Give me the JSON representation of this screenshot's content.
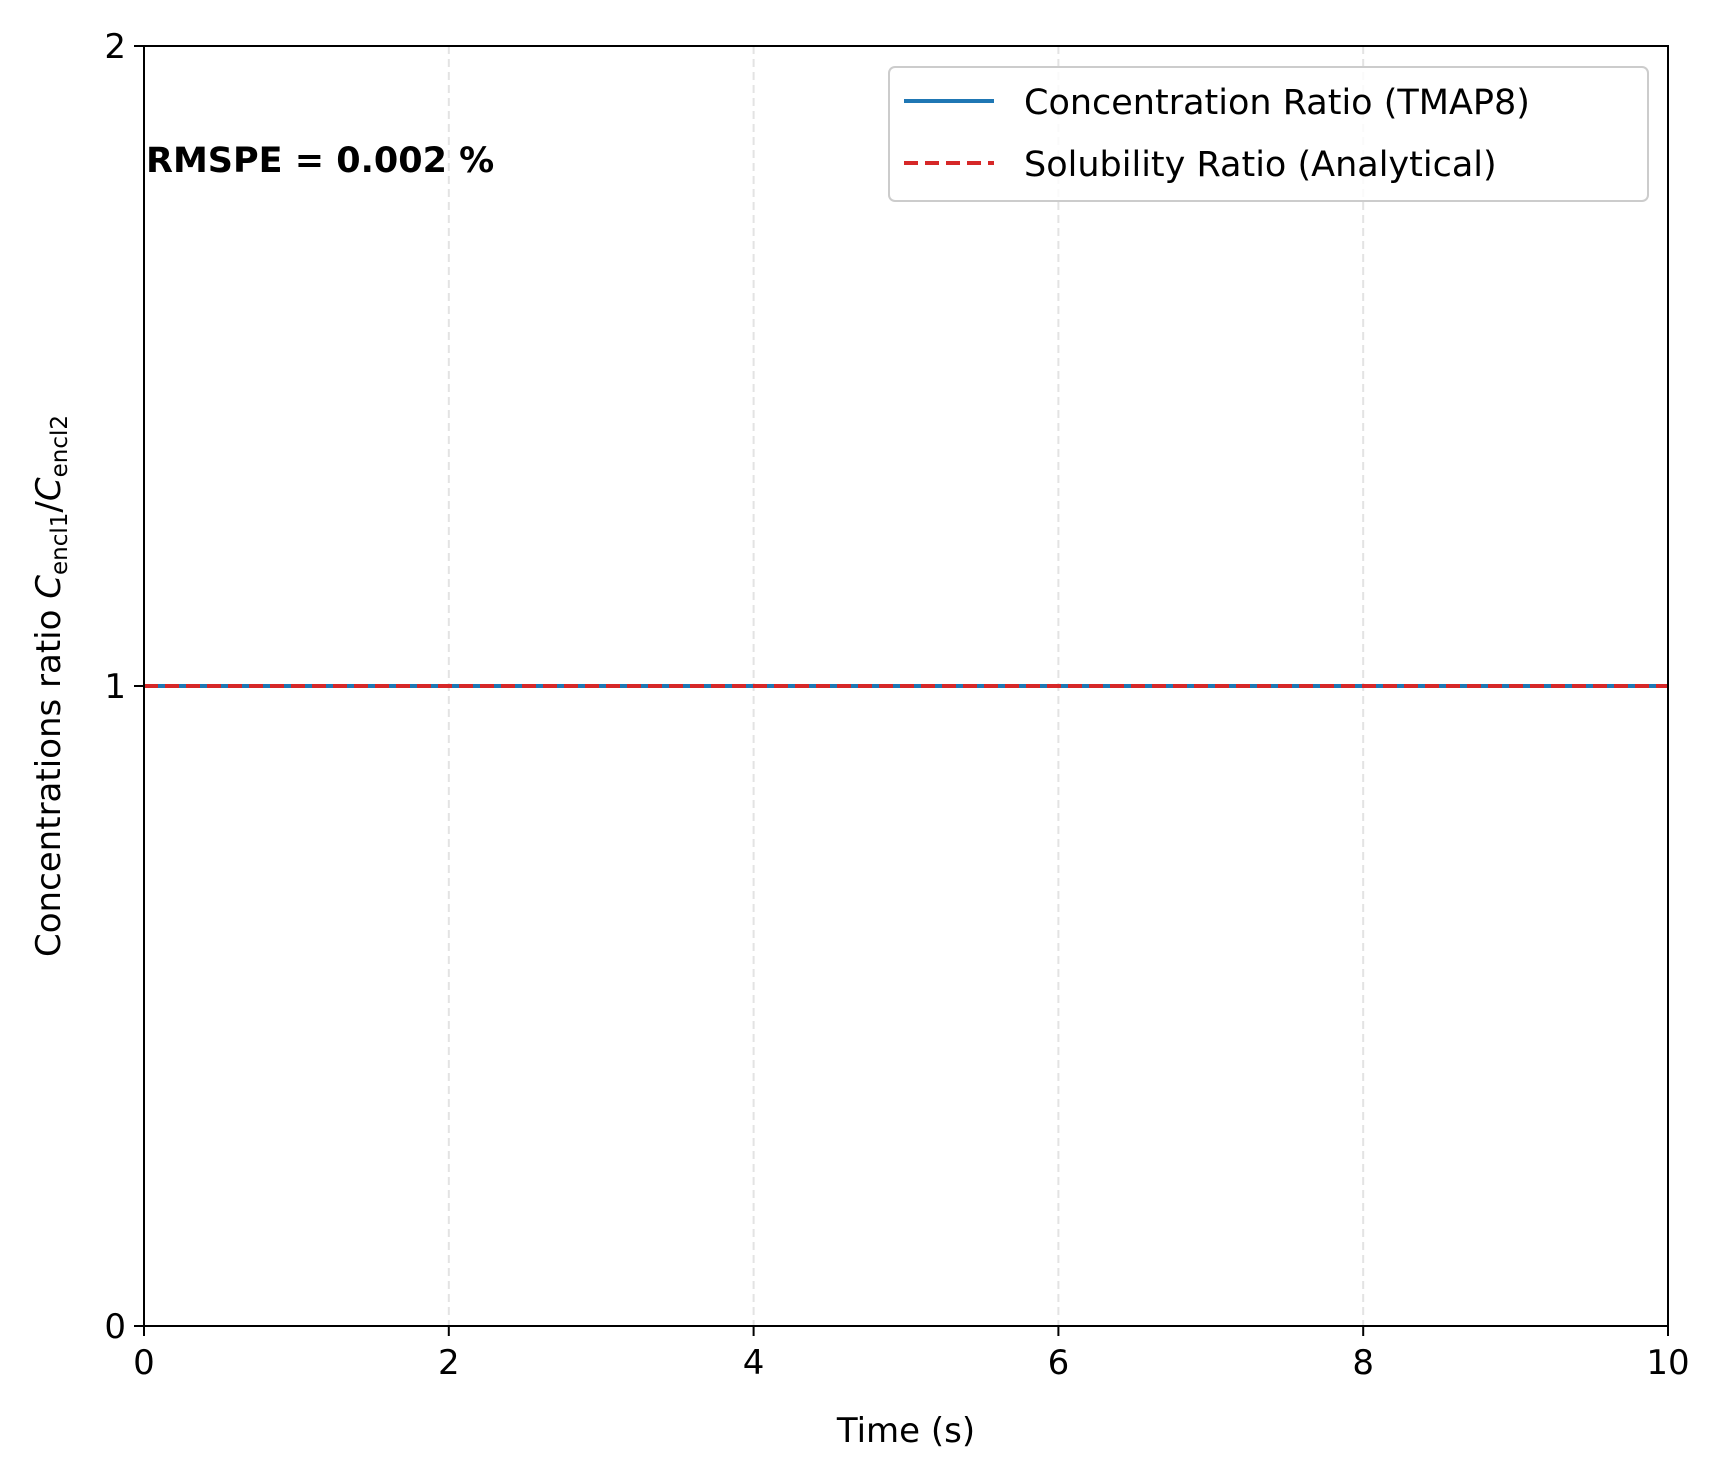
{
  "chart_data": {
    "type": "line",
    "xlabel": "Time (s)",
    "ylabel": {
      "prefix": "Concentrations ratio ",
      "c1": "C",
      "sub1": "encl1",
      "slash": "/",
      "c2": "C",
      "sub2": "encl2"
    },
    "xlim": [
      0,
      10
    ],
    "ylim": [
      0,
      2
    ],
    "xticks": [
      0,
      2,
      4,
      6,
      8,
      10
    ],
    "yticks": [
      0,
      1,
      2
    ],
    "grid": "x-only, dashed",
    "legend_position": "top-right",
    "annotation": "RMSPE = 0.002 %",
    "series": [
      {
        "name": "Concentration Ratio (TMAP8)",
        "style": "solid",
        "color": "#1f77b4",
        "x": [
          0,
          10
        ],
        "y": [
          1.0,
          1.0
        ]
      },
      {
        "name": "Solubility Ratio (Analytical)",
        "style": "dashed",
        "color": "#d62728",
        "x": [
          0,
          10
        ],
        "y": [
          1.0,
          1.0
        ]
      }
    ]
  }
}
